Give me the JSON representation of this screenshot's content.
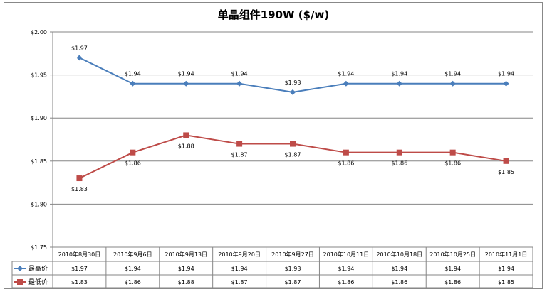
{
  "chart_data": {
    "type": "line",
    "title": "单晶组件190W ($/w)",
    "categories": [
      "2010年8月30日",
      "2010年9月6日",
      "2010年9月13日",
      "2010年9月20日",
      "2010年9月27日",
      "2010年10月11日",
      "2010年10月18日",
      "2010年10月25日",
      "2010年11月1日"
    ],
    "series": [
      {
        "name": "最高价",
        "color": "#4a7ebb",
        "marker": "diamond",
        "values": [
          1.97,
          1.94,
          1.94,
          1.94,
          1.93,
          1.94,
          1.94,
          1.94,
          1.94
        ]
      },
      {
        "name": "最低价",
        "color": "#be4b48",
        "marker": "square",
        "values": [
          1.83,
          1.86,
          1.88,
          1.87,
          1.87,
          1.86,
          1.86,
          1.86,
          1.85
        ]
      }
    ],
    "ylim": [
      1.75,
      2.0
    ],
    "yticks": [
      "$1.75",
      "$1.80",
      "$1.85",
      "$1.90",
      "$1.95",
      "$2.00"
    ],
    "grid": true,
    "legend": "data-table",
    "xlabel": "",
    "ylabel": ""
  }
}
